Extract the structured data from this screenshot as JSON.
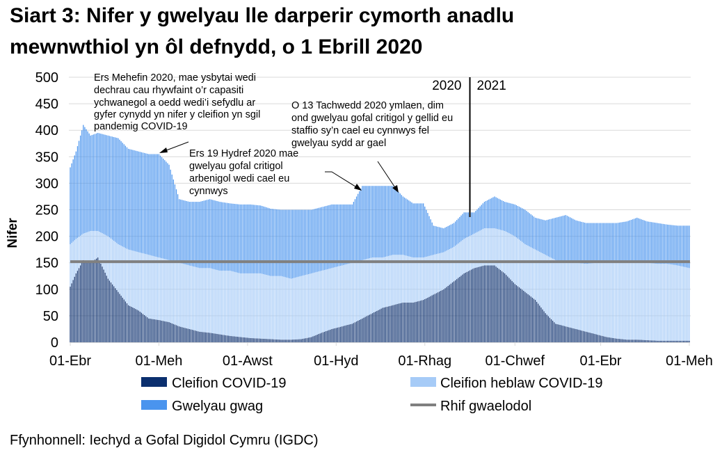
{
  "title_lines": [
    "Siart 3: Nifer y gwelyau lle darperir cymorth anadlu",
    "mewnwthiol yn ôl defnydd, o 1 Ebrill 2020"
  ],
  "source": "Ffynhonnell: Iechyd a Gofal Digidol Cymru (IGDC)",
  "chart_data": {
    "type": "bar",
    "stacked": true,
    "title": "Siart 3: Nifer y gwelyau lle darperir cymorth anadlu mewnwthiol yn ôl defnydd, o 1 Ebrill 2020",
    "xlabel": "",
    "ylabel": "Nifer",
    "ylim": [
      0,
      500
    ],
    "yticks": [
      "0",
      "50",
      "100",
      "150",
      "200",
      "250",
      "300",
      "350",
      "400",
      "450",
      "500"
    ],
    "xticks": [
      {
        "label": "01-Ebr",
        "date": "2020-04-01"
      },
      {
        "label": "01-Meh",
        "date": "2020-06-01"
      },
      {
        "label": "01-Awst",
        "date": "2020-08-01"
      },
      {
        "label": "01-Hyd",
        "date": "2020-10-01"
      },
      {
        "label": "01-Rhag",
        "date": "2020-12-01"
      },
      {
        "label": "01-Chwef",
        "date": "2021-02-01"
      },
      {
        "label": "01-Ebr",
        "date": "2021-04-01"
      },
      {
        "label": "01-Meh",
        "date": "2021-06-01"
      }
    ],
    "grid": true,
    "legend_position": "bottom",
    "dates": [
      "2020-04-01",
      "2020-04-05",
      "2020-04-10",
      "2020-04-15",
      "2020-04-20",
      "2020-04-27",
      "2020-05-04",
      "2020-05-11",
      "2020-05-18",
      "2020-05-25",
      "2020-06-01",
      "2020-06-08",
      "2020-06-15",
      "2020-06-22",
      "2020-06-29",
      "2020-07-06",
      "2020-07-13",
      "2020-07-20",
      "2020-07-27",
      "2020-08-03",
      "2020-08-10",
      "2020-08-17",
      "2020-08-24",
      "2020-08-31",
      "2020-09-07",
      "2020-09-14",
      "2020-09-21",
      "2020-09-28",
      "2020-10-05",
      "2020-10-12",
      "2020-10-19",
      "2020-10-26",
      "2020-11-02",
      "2020-11-09",
      "2020-11-16",
      "2020-11-23",
      "2020-11-30",
      "2020-12-07",
      "2020-12-14",
      "2020-12-21",
      "2020-12-28",
      "2021-01-04",
      "2021-01-11",
      "2021-01-18",
      "2021-01-25",
      "2021-02-01",
      "2021-02-08",
      "2021-02-15",
      "2021-02-22",
      "2021-03-01",
      "2021-03-08",
      "2021-03-15",
      "2021-03-22",
      "2021-03-29",
      "2021-04-05",
      "2021-04-12",
      "2021-04-19",
      "2021-04-26",
      "2021-05-03",
      "2021-05-10",
      "2021-05-17",
      "2021-05-24",
      "2021-06-01"
    ],
    "series": [
      {
        "name": "Cleifion COVID-19",
        "color": "#0b2f6e",
        "values": [
          105,
          130,
          155,
          150,
          160,
          120,
          95,
          70,
          60,
          45,
          42,
          38,
          30,
          25,
          20,
          18,
          15,
          12,
          10,
          8,
          7,
          6,
          5,
          5,
          6,
          10,
          18,
          25,
          30,
          35,
          45,
          55,
          65,
          70,
          75,
          75,
          80,
          90,
          100,
          115,
          130,
          140,
          145,
          145,
          130,
          110,
          95,
          80,
          55,
          35,
          30,
          25,
          20,
          15,
          10,
          7,
          5,
          5,
          4,
          3,
          3,
          3,
          3
        ]
      },
      {
        "name": "Cleifion heblaw COVID-19",
        "color": "#a6cbf7",
        "values": [
          80,
          65,
          50,
          60,
          50,
          80,
          90,
          105,
          110,
          120,
          118,
          117,
          120,
          120,
          120,
          122,
          120,
          123,
          120,
          122,
          123,
          119,
          120,
          115,
          119,
          120,
          117,
          115,
          115,
          115,
          110,
          105,
          95,
          95,
          90,
          85,
          80,
          75,
          70,
          65,
          65,
          65,
          70,
          70,
          80,
          90,
          90,
          95,
          110,
          120,
          120,
          125,
          128,
          135,
          140,
          143,
          147,
          145,
          146,
          145,
          145,
          142,
          137
        ]
      },
      {
        "name": "Gwelyau gwag",
        "color": "#4a94ee",
        "values": [
          145,
          165,
          205,
          180,
          185,
          190,
          200,
          190,
          190,
          190,
          195,
          180,
          120,
          120,
          125,
          130,
          130,
          127,
          130,
          130,
          128,
          127,
          125,
          130,
          125,
          120,
          120,
          120,
          115,
          110,
          140,
          135,
          135,
          130,
          110,
          102,
          102,
          55,
          45,
          45,
          50,
          40,
          50,
          60,
          55,
          60,
          65,
          60,
          65,
          80,
          90,
          80,
          77,
          75,
          75,
          75,
          76,
          85,
          78,
          77,
          74,
          75,
          80
        ]
      }
    ],
    "reference_line": {
      "name": "Rhif gwaelodol",
      "value": 152,
      "color": "#808080"
    },
    "year_divider": {
      "date": "2021-01-01",
      "labels": [
        "2020",
        "2021"
      ]
    },
    "annotations": [
      {
        "lines": [
          "Ers Mehefin 2020, mae ysbytai wedi",
          "dechrau cau rhywfaint o’r capasiti",
          "ychwanegol a oedd wedi’i sefydlu ar",
          "gyfer cynydd yn nifer y cleifion yn sgil",
          "pandemig COVID-19"
        ]
      },
      {
        "lines": [
          "Ers 19 Hydref 2020 mae",
          "gwelyau gofal critigol",
          "arbenigol wedi cael eu",
          "cynnwys"
        ]
      },
      {
        "lines": [
          "O 13 Tachwedd 2020 ymlaen, dim",
          "ond gwelyau gofal critigol y gellid eu",
          "staffio sy’n cael eu cynnwys fel",
          "gwelyau sydd ar gael"
        ]
      }
    ]
  }
}
